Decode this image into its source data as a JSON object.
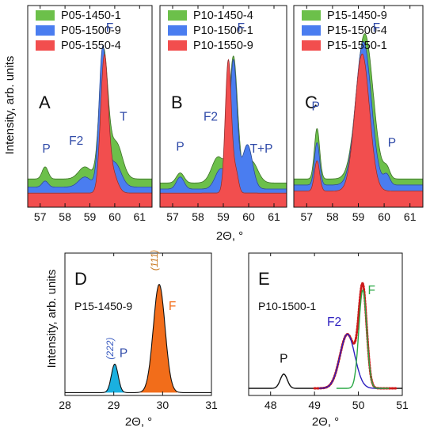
{
  "figure": {
    "ylabel_top": "Intensity, arb. units",
    "ylabel_bottom": "Intensity, arb. units",
    "xlabel_top": "2Θ, °",
    "xlabel_bottom_left": "2Θ, °",
    "xlabel_bottom_right": "2Θ, °"
  },
  "colors": {
    "green": "#6cc04a",
    "blue": "#4a7df0",
    "red": "#f24e4e",
    "peakLabel": "#2f4aa8",
    "cyan": "#1ab0e0",
    "orange": "#f26d1a",
    "millerOrange": "#c87820",
    "millerBlue": "#3a5bc0",
    "fitRed": "#cc1a1a",
    "fitBlue": "#2d1fbf",
    "fitGreen": "#2aa845",
    "black": "#111111"
  },
  "chart_data": [
    {
      "id": "A",
      "type": "area",
      "panel_label": "A",
      "xlim": [
        56.5,
        61.5
      ],
      "xticks": [
        57,
        58,
        59,
        60,
        61
      ],
      "series": [
        {
          "name": "P05-1450-1",
          "color": "green",
          "base": 0.14,
          "peaks": [
            [
              57.2,
              0.06,
              0.12
            ],
            [
              58.8,
              0.06,
              0.25
            ],
            [
              59.55,
              0.62,
              0.17
            ],
            [
              60.05,
              0.18,
              0.25
            ]
          ]
        },
        {
          "name": "P05-1500-9",
          "color": "blue",
          "base": 0.1,
          "peaks": [
            [
              57.2,
              0.03,
              0.12
            ],
            [
              58.8,
              0.05,
              0.25
            ],
            [
              59.52,
              0.68,
              0.15
            ],
            [
              60.0,
              0.12,
              0.25
            ]
          ]
        },
        {
          "name": "P05-1550-4",
          "color": "red",
          "base": 0.07,
          "peaks": [
            [
              59.58,
              0.66,
              0.15
            ],
            [
              59.9,
              0.1,
              0.2
            ]
          ]
        }
      ],
      "annotations": [
        {
          "text": "P",
          "x": 57.25,
          "y": 0.27
        },
        {
          "text": "F2",
          "x": 58.45,
          "y": 0.31
        },
        {
          "text": "F",
          "x": 59.8,
          "y": 0.87
        },
        {
          "text": "T",
          "x": 60.35,
          "y": 0.43
        }
      ]
    },
    {
      "id": "B",
      "type": "area",
      "panel_label": "B",
      "xlim": [
        56.5,
        61.5
      ],
      "xticks": [
        57,
        58,
        59,
        60,
        61
      ],
      "series": [
        {
          "name": "P10-1450-4",
          "color": "green",
          "base": 0.12,
          "peaks": [
            [
              57.3,
              0.05,
              0.15
            ],
            [
              58.8,
              0.13,
              0.25
            ],
            [
              59.4,
              0.62,
              0.16
            ],
            [
              60.1,
              0.11,
              0.25
            ]
          ]
        },
        {
          "name": "P10-1500-1",
          "color": "blue",
          "base": 0.09,
          "peaks": [
            [
              57.3,
              0.06,
              0.15
            ],
            [
              58.9,
              0.1,
              0.22
            ],
            [
              59.4,
              0.63,
              0.14
            ],
            [
              59.95,
              0.22,
              0.2
            ]
          ]
        },
        {
          "name": "P10-1550-9",
          "color": "red",
          "base": 0.07,
          "peaks": [
            [
              59.2,
              0.66,
              0.12
            ],
            [
              59.5,
              0.1,
              0.1
            ]
          ]
        }
      ],
      "annotations": [
        {
          "text": "P",
          "x": 57.3,
          "y": 0.28
        },
        {
          "text": "F2",
          "x": 58.5,
          "y": 0.43
        },
        {
          "text": "F",
          "x": 59.7,
          "y": 0.87
        },
        {
          "text": "T+P",
          "x": 60.5,
          "y": 0.27
        }
      ]
    },
    {
      "id": "C",
      "type": "area",
      "panel_label": "C",
      "xlim": [
        56.5,
        61.5
      ],
      "xticks": [
        57,
        58,
        59,
        60,
        61
      ],
      "series": [
        {
          "name": "P15-1450-9",
          "color": "green",
          "base": 0.14,
          "peaks": [
            [
              57.4,
              0.25,
              0.1
            ],
            [
              59.25,
              0.72,
              0.32
            ],
            [
              60.1,
              0.05,
              0.12
            ]
          ]
        },
        {
          "name": "P15-1500-4",
          "color": "blue",
          "base": 0.11,
          "peaks": [
            [
              57.4,
              0.21,
              0.1
            ],
            [
              59.2,
              0.71,
              0.3
            ],
            [
              60.1,
              0.05,
              0.12
            ]
          ]
        },
        {
          "name": "P15-1550-1",
          "color": "red",
          "base": 0.08,
          "peaks": [
            [
              57.4,
              0.15,
              0.1
            ],
            [
              59.15,
              0.68,
              0.28
            ]
          ]
        }
      ],
      "annotations": [
        {
          "text": "P",
          "x": 57.35,
          "y": 0.48
        },
        {
          "text": "F",
          "x": 59.7,
          "y": 0.87
        },
        {
          "text": "P",
          "x": 60.3,
          "y": 0.3
        }
      ]
    },
    {
      "id": "D",
      "type": "area",
      "panel_label": "D",
      "sample_label": "P15-1450-9",
      "xlim": [
        28,
        31
      ],
      "xticks": [
        28,
        29,
        30,
        31
      ],
      "baseline": 0.02,
      "fills": [
        {
          "color": "cyan",
          "center": 29.02,
          "height": 0.2,
          "sigma": 0.07,
          "from": 28.82,
          "to": 29.22
        },
        {
          "color": "orange",
          "center": 29.93,
          "height": 0.76,
          "sigma": 0.12,
          "from": 29.55,
          "to": 30.3
        }
      ],
      "annotations": [
        {
          "text": "(222)",
          "x": 28.99,
          "y": 0.33,
          "kind": "miller-blue"
        },
        {
          "text": "P",
          "x": 29.2,
          "y": 0.27,
          "kind": "blue"
        },
        {
          "text": "(111)",
          "x": 29.9,
          "y": 0.95,
          "kind": "miller-orange"
        },
        {
          "text": "F",
          "x": 30.2,
          "y": 0.6,
          "kind": "orange"
        }
      ]
    },
    {
      "id": "E",
      "type": "line",
      "panel_label": "E",
      "sample_label": "P10-1500-1",
      "xlim": [
        47.5,
        51
      ],
      "xticks": [
        48,
        49,
        50,
        51
      ],
      "baseline": 0.05,
      "curves": [
        {
          "color": "black",
          "peaks": [
            [
              48.3,
              0.1,
              0.08
            ],
            [
              49.75,
              0.38,
              0.17
            ],
            [
              50.1,
              0.69,
              0.09
            ]
          ],
          "from": 47.5,
          "to": 51
        },
        {
          "color": "fitRed",
          "peaks": [
            [
              49.75,
              0.38,
              0.17
            ],
            [
              50.1,
              0.69,
              0.09
            ]
          ],
          "from": 49.0,
          "to": 50.85,
          "dotted": true
        },
        {
          "color": "fitBlue",
          "peaks": [
            [
              49.75,
              0.38,
              0.17
            ]
          ],
          "from": 49.1,
          "to": 50.55
        },
        {
          "color": "fitGreen",
          "peaks": [
            [
              50.1,
              0.69,
              0.09
            ]
          ],
          "from": 49.5,
          "to": 50.7
        }
      ],
      "annotations": [
        {
          "text": "P",
          "x": 48.3,
          "y": 0.23,
          "kind": "black"
        },
        {
          "text": "F2",
          "x": 49.45,
          "y": 0.49,
          "kind": "fitBlue"
        },
        {
          "text": "F",
          "x": 50.3,
          "y": 0.71,
          "kind": "fitGreen"
        }
      ]
    }
  ]
}
